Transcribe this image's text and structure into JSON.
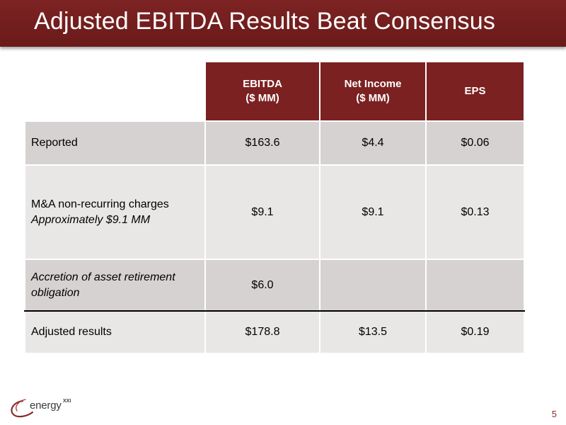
{
  "slide": {
    "title": "Adjusted EBITDA Results Beat Consensus",
    "page_number": "5"
  },
  "table": {
    "headers": [
      {
        "line1": "EBITDA",
        "line2": "($ MM)"
      },
      {
        "line1": "Net Income",
        "line2": "($ MM)"
      },
      {
        "line1": "EPS",
        "line2": ""
      }
    ],
    "rows": [
      {
        "label": "Reported",
        "sublabel": "",
        "values": [
          "$163.6",
          "$4.4",
          "$0.06"
        ]
      },
      {
        "label": "M&A non-recurring charges",
        "sublabel": "Approximately $9.1 MM",
        "values": [
          "$9.1",
          "$9.1",
          "$0.13"
        ]
      },
      {
        "label": "Accretion of asset retirement obligation",
        "sublabel": "",
        "values": [
          "$6.0",
          "",
          ""
        ]
      },
      {
        "label": "Adjusted results",
        "sublabel": "",
        "values": [
          "$178.8",
          "$13.5",
          "$0.19"
        ]
      }
    ]
  },
  "logo": {
    "text": "energy",
    "superscript": "XXI"
  },
  "colors": {
    "brand_maroon": "#7b2121",
    "row_dark": "#d7d2d2",
    "row_light": "#e9e6e6"
  }
}
